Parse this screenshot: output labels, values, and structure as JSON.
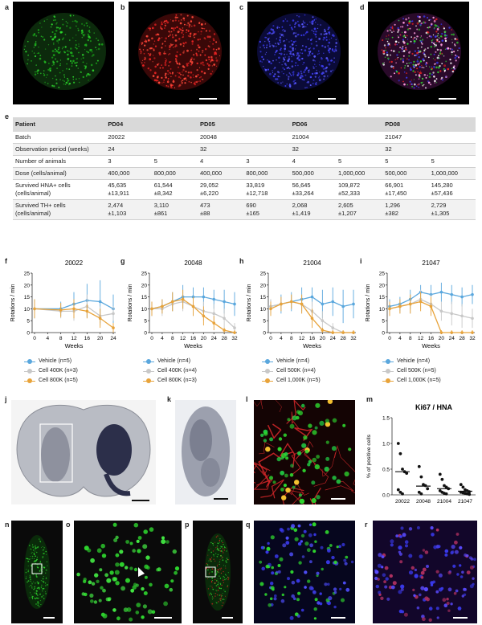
{
  "panels": {
    "a": "a",
    "b": "b",
    "c": "c",
    "d": "d",
    "e": "e",
    "f": "f",
    "g": "g",
    "h": "h",
    "i": "i",
    "j": "j",
    "k": "k",
    "l": "l",
    "m": "m",
    "n": "n",
    "o": "o",
    "p": "p",
    "q": "q",
    "r": "r"
  },
  "colors": {
    "vehicle": "#5aa7dd",
    "low": "#c8c8c8",
    "high": "#e8a33a",
    "green": "#2ed62e",
    "red": "#e52222",
    "blue": "#3a3aee"
  },
  "table": {
    "header": [
      "Patient",
      "PD04",
      "",
      "PD05",
      "",
      "PD06",
      "",
      "PD08",
      ""
    ],
    "rows": [
      [
        "Batch",
        "20022",
        "",
        "20048",
        "",
        "21004",
        "",
        "21047",
        ""
      ],
      [
        "Observation period (weeks)",
        "24",
        "",
        "32",
        "",
        "32",
        "",
        "32",
        ""
      ],
      [
        "Number of animals",
        "3",
        "5",
        "4",
        "3",
        "4",
        "5",
        "5",
        "5"
      ],
      [
        "Dose (cells/animal)",
        "400,000",
        "800,000",
        "400,000",
        "800,000",
        "500,000",
        "1,000,000",
        "500,000",
        "1,000,000"
      ],
      [
        "Survived HNA+ cells\n(cells/animal)",
        "45,635\n±13,911",
        "61,544\n±8,342",
        "29,052\n±6,220",
        "33,819\n±12,718",
        "56,645\n±33,264",
        "109,872\n±52,333",
        "66,901\n±17,450",
        "145,280\n±57,436"
      ],
      [
        "Survived TH+ cells\n(cells/animal)",
        "2,474\n±1,103",
        "3,110\n±861",
        "473\n±88",
        "690\n±165",
        "2,068\n±1,419",
        "2,605\n±1,207",
        "1,296\n±382",
        "2,729\n±1,305"
      ]
    ]
  },
  "chart_data": [
    {
      "type": "line",
      "panel": "f",
      "title": "20022",
      "xlabel": "Weeks",
      "ylabel": "Rotations / min",
      "ylim": [
        0,
        25
      ],
      "yticks": [
        0,
        5,
        10,
        15,
        20,
        25
      ],
      "xticks": [
        0,
        4,
        8,
        12,
        16,
        20,
        24
      ],
      "series": [
        {
          "name": "Vehicle (n=5)",
          "key": "vehicle",
          "x": [
            0,
            8,
            12,
            16,
            20,
            24
          ],
          "y": [
            10,
            10,
            12,
            13.5,
            13,
            10
          ],
          "err": [
            4,
            3,
            5,
            7,
            9,
            6
          ]
        },
        {
          "name": "Cell 400K (n=3)",
          "key": "low",
          "x": [
            0,
            8,
            12,
            16,
            20,
            24
          ],
          "y": [
            10,
            9,
            9,
            11,
            7,
            8
          ],
          "err": [
            3,
            3,
            4,
            5,
            4,
            3
          ]
        },
        {
          "name": "Cell 800K (n=5)",
          "key": "high",
          "x": [
            0,
            8,
            12,
            16,
            20,
            24
          ],
          "y": [
            10,
            9.5,
            10,
            9,
            6,
            2
          ],
          "err": [
            4,
            3,
            4,
            3,
            4,
            2
          ]
        }
      ]
    },
    {
      "type": "line",
      "panel": "g",
      "title": "20048",
      "xlabel": "Weeks",
      "ylabel": "Rotations / min",
      "ylim": [
        0,
        25
      ],
      "yticks": [
        0,
        5,
        10,
        15,
        20,
        25
      ],
      "xticks": [
        0,
        4,
        8,
        12,
        16,
        20,
        24,
        28,
        32
      ],
      "series": [
        {
          "name": "Vehicle (n=4)",
          "key": "vehicle",
          "x": [
            0,
            4,
            8,
            12,
            16,
            20,
            24,
            28,
            32
          ],
          "y": [
            10,
            11,
            13,
            15,
            15,
            15,
            14,
            13,
            12
          ],
          "err": [
            3,
            3,
            4,
            5,
            4,
            4,
            4,
            5,
            5
          ]
        },
        {
          "name": "Cell 400K (n=4)",
          "key": "low",
          "x": [
            0,
            4,
            8,
            12,
            16,
            20,
            24,
            28,
            32
          ],
          "y": [
            10,
            10,
            12,
            13,
            11,
            9,
            8,
            6,
            2
          ],
          "err": [
            3,
            3,
            3,
            4,
            4,
            4,
            4,
            4,
            2
          ]
        },
        {
          "name": "Cell 800K (n=3)",
          "key": "high",
          "x": [
            0,
            4,
            8,
            12,
            16,
            20,
            24,
            28,
            32
          ],
          "y": [
            10,
            11,
            13,
            14,
            11,
            7,
            4,
            1,
            0
          ],
          "err": [
            3,
            3,
            4,
            4,
            4,
            4,
            3,
            1,
            1
          ]
        }
      ]
    },
    {
      "type": "line",
      "panel": "h",
      "title": "21004",
      "xlabel": "Weeks",
      "ylabel": "Rotations / min",
      "ylim": [
        0,
        25
      ],
      "yticks": [
        0,
        5,
        10,
        15,
        20,
        25
      ],
      "xticks": [
        0,
        4,
        8,
        12,
        16,
        20,
        24,
        28,
        32
      ],
      "series": [
        {
          "name": "Vehicle (n=4)",
          "key": "vehicle",
          "x": [
            0,
            4,
            8,
            12,
            16,
            20,
            24,
            28,
            32
          ],
          "y": [
            11,
            12,
            13,
            14,
            15,
            12,
            13,
            11,
            12
          ],
          "err": [
            3,
            4,
            4,
            5,
            4,
            6,
            6,
            7,
            6
          ]
        },
        {
          "name": "Cell 500K (n=4)",
          "key": "low",
          "x": [
            0,
            4,
            8,
            12,
            16,
            20,
            24,
            28,
            32
          ],
          "y": [
            11,
            12,
            13,
            12,
            9,
            5,
            2,
            0,
            0
          ],
          "err": [
            3,
            3,
            3,
            4,
            4,
            4,
            2,
            1,
            1
          ]
        },
        {
          "name": "Cell 1,000K (n=5)",
          "key": "high",
          "x": [
            0,
            4,
            8,
            12,
            16,
            20,
            24,
            28,
            32
          ],
          "y": [
            10,
            12,
            13,
            12,
            6,
            1,
            0,
            0,
            0
          ],
          "err": [
            3,
            3,
            3,
            4,
            4,
            1,
            1,
            1,
            1
          ]
        }
      ]
    },
    {
      "type": "line",
      "panel": "i",
      "title": "21047",
      "xlabel": "Weeks",
      "ylabel": "Rotations / min",
      "ylim": [
        0,
        25
      ],
      "yticks": [
        0,
        5,
        10,
        15,
        20,
        25
      ],
      "xticks": [
        0,
        4,
        8,
        12,
        16,
        20,
        24,
        28,
        32
      ],
      "series": [
        {
          "name": "Vehicle (n=4)",
          "key": "vehicle",
          "x": [
            0,
            4,
            8,
            12,
            16,
            20,
            24,
            28,
            32
          ],
          "y": [
            11,
            12,
            14,
            17,
            16,
            17,
            16,
            15,
            16
          ],
          "err": [
            3,
            3,
            4,
            3,
            4,
            4,
            4,
            4,
            4
          ]
        },
        {
          "name": "Cell 500K (n=5)",
          "key": "low",
          "x": [
            0,
            4,
            8,
            12,
            16,
            20,
            24,
            28,
            32
          ],
          "y": [
            10,
            11,
            12,
            14,
            12,
            9,
            8,
            7,
            6
          ],
          "err": [
            3,
            3,
            4,
            4,
            4,
            4,
            5,
            5,
            4
          ]
        },
        {
          "name": "Cell 1,000K (n=5)",
          "key": "high",
          "x": [
            0,
            4,
            8,
            12,
            16,
            20,
            24,
            28,
            32
          ],
          "y": [
            10,
            11,
            12,
            13,
            11,
            0,
            0,
            0,
            0
          ],
          "err": [
            3,
            3,
            4,
            4,
            4,
            1,
            1,
            1,
            1
          ]
        }
      ]
    },
    {
      "type": "scatter",
      "panel": "m",
      "title": "Ki67 / HNA",
      "ylabel": "% of positive cells",
      "ylim": [
        0,
        1.5
      ],
      "yticks": [
        "0.0",
        "0.5",
        "1.0",
        "1.5"
      ],
      "categories": [
        "20022",
        "20048",
        "21004",
        "21047"
      ],
      "means": [
        0.45,
        0.17,
        0.12,
        0.07
      ],
      "points": [
        [
          1.0,
          0.8,
          0.5,
          0.45,
          0.42,
          0.1,
          0.05,
          0.02
        ],
        [
          0.55,
          0.35,
          0.2,
          0.18,
          0.12,
          0.05,
          0.02
        ],
        [
          0.4,
          0.3,
          0.18,
          0.15,
          0.12,
          0.08,
          0.05,
          0.03,
          0.02
        ],
        [
          0.2,
          0.15,
          0.1,
          0.08,
          0.06,
          0.05,
          0.04,
          0.03,
          0.02,
          0.01
        ]
      ]
    }
  ]
}
